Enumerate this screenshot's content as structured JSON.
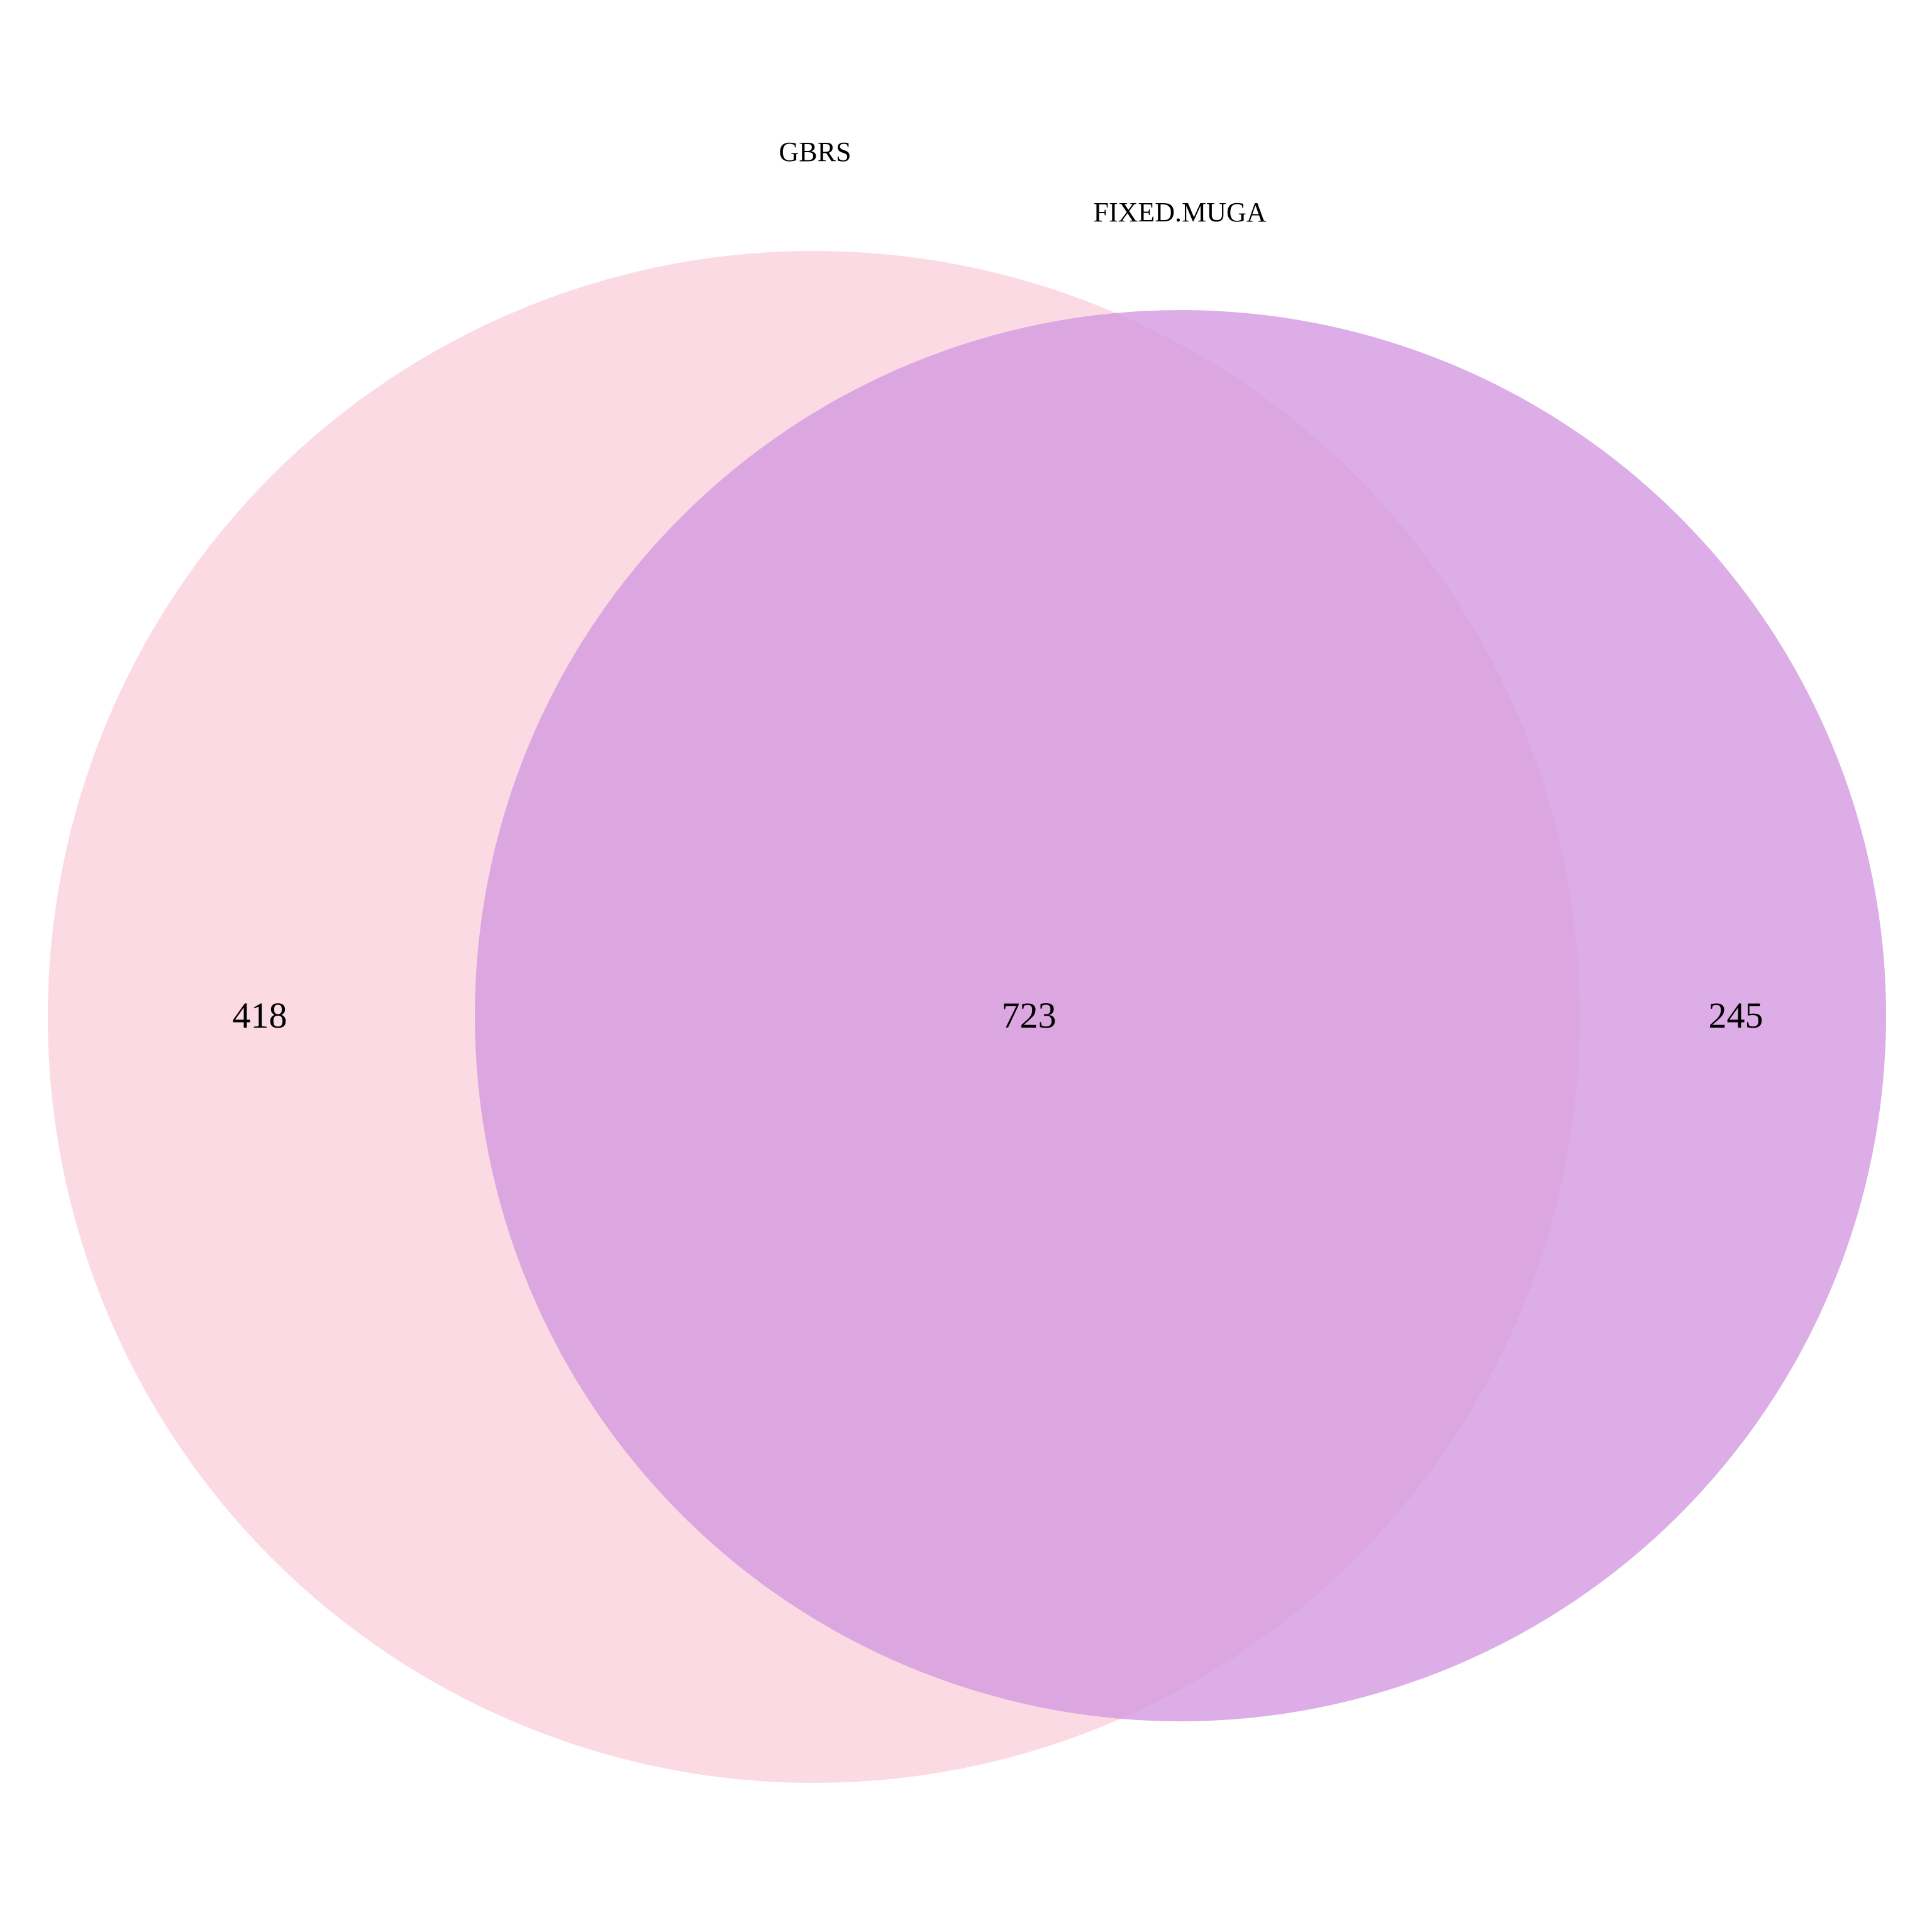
{
  "diagram": {
    "type": "venn",
    "sets": [
      {
        "name": "GBRS",
        "color": "#fcd5df"
      },
      {
        "name": "FIXED.MUGA",
        "color": "#d49be0"
      }
    ],
    "regions": {
      "gbrs_only": "418",
      "intersection": "723",
      "fixed_muga_only": "245"
    },
    "overlap_color": "#da95d9"
  }
}
